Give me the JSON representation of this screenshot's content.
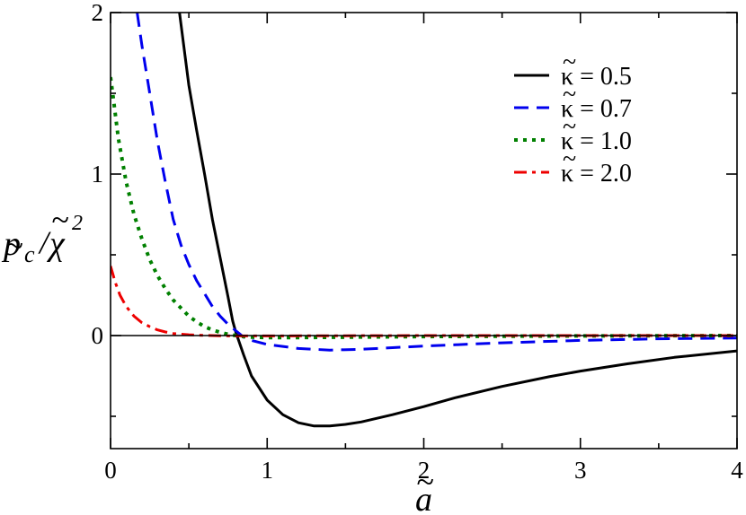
{
  "chart_data": {
    "type": "line",
    "xlim": [
      0,
      4
    ],
    "ylim": [
      -0.7,
      2
    ],
    "x_ticks": [
      "0",
      "1",
      "2",
      "3",
      "4"
    ],
    "y_ticks": [
      "0",
      "1",
      "2"
    ],
    "y_ticks_values": [
      0,
      1,
      2
    ],
    "x_ticks_values": [
      0,
      1,
      2,
      3,
      4
    ],
    "zero_line": true,
    "grid": false,
    "legend_position": "top-right",
    "xlabel": {
      "symbol": "a",
      "accent": "~"
    },
    "ylabel": {
      "numerator": "p",
      "subscript": "c",
      "denominator": "χ",
      "exponent": "2",
      "accent": "~"
    },
    "series": [
      {
        "name": "κ = 0.5",
        "legend_symbol": "κ",
        "legend_value": "= 0.5",
        "color": "#000000",
        "dash": "solid",
        "points": [
          [
            0.44,
            2.0
          ],
          [
            0.5,
            1.55
          ],
          [
            0.55,
            1.27
          ],
          [
            0.6,
            1.0
          ],
          [
            0.65,
            0.72
          ],
          [
            0.7,
            0.48
          ],
          [
            0.75,
            0.24
          ],
          [
            0.78,
            0.09
          ],
          [
            0.8,
            0.02
          ],
          [
            0.85,
            -0.12
          ],
          [
            0.9,
            -0.25
          ],
          [
            1.0,
            -0.4
          ],
          [
            1.1,
            -0.49
          ],
          [
            1.2,
            -0.54
          ],
          [
            1.3,
            -0.56
          ],
          [
            1.4,
            -0.56
          ],
          [
            1.5,
            -0.55
          ],
          [
            1.6,
            -0.535
          ],
          [
            1.8,
            -0.49
          ],
          [
            2.0,
            -0.44
          ],
          [
            2.2,
            -0.385
          ],
          [
            2.5,
            -0.315
          ],
          [
            2.8,
            -0.255
          ],
          [
            3.0,
            -0.22
          ],
          [
            3.3,
            -0.175
          ],
          [
            3.6,
            -0.135
          ],
          [
            4.0,
            -0.095
          ]
        ]
      },
      {
        "name": "κ = 0.7",
        "legend_symbol": "κ",
        "legend_value": "= 0.7",
        "color": "#0000ee",
        "dash": "long-dash",
        "points": [
          [
            0.17,
            2.0
          ],
          [
            0.2,
            1.8
          ],
          [
            0.25,
            1.5
          ],
          [
            0.3,
            1.2
          ],
          [
            0.35,
            0.95
          ],
          [
            0.4,
            0.72
          ],
          [
            0.45,
            0.56
          ],
          [
            0.5,
            0.44
          ],
          [
            0.55,
            0.34
          ],
          [
            0.6,
            0.26
          ],
          [
            0.65,
            0.18
          ],
          [
            0.7,
            0.12
          ],
          [
            0.75,
            0.07
          ],
          [
            0.8,
            0.03
          ],
          [
            0.85,
            -0.01
          ],
          [
            0.9,
            -0.03
          ],
          [
            1.0,
            -0.055
          ],
          [
            1.2,
            -0.08
          ],
          [
            1.4,
            -0.09
          ],
          [
            1.6,
            -0.085
          ],
          [
            1.8,
            -0.075
          ],
          [
            2.0,
            -0.065
          ],
          [
            2.5,
            -0.045
          ],
          [
            3.0,
            -0.03
          ],
          [
            3.5,
            -0.02
          ],
          [
            4.0,
            -0.015
          ]
        ]
      },
      {
        "name": "κ = 1.0",
        "legend_symbol": "κ",
        "legend_value": "= 1.0",
        "color": "#008000",
        "dash": "dotted",
        "points": [
          [
            0.0,
            1.6
          ],
          [
            0.02,
            1.45
          ],
          [
            0.05,
            1.22
          ],
          [
            0.1,
            0.95
          ],
          [
            0.15,
            0.75
          ],
          [
            0.2,
            0.6
          ],
          [
            0.25,
            0.47
          ],
          [
            0.3,
            0.37
          ],
          [
            0.35,
            0.29
          ],
          [
            0.4,
            0.22
          ],
          [
            0.45,
            0.17
          ],
          [
            0.5,
            0.12
          ],
          [
            0.55,
            0.085
          ],
          [
            0.6,
            0.055
          ],
          [
            0.65,
            0.035
          ],
          [
            0.7,
            0.02
          ],
          [
            0.75,
            0.008
          ],
          [
            0.8,
            0.0
          ],
          [
            0.85,
            -0.006
          ],
          [
            0.9,
            -0.01
          ],
          [
            1.0,
            -0.012
          ],
          [
            1.2,
            -0.012
          ],
          [
            1.5,
            -0.01
          ],
          [
            2.0,
            -0.006
          ],
          [
            3.0,
            -0.002
          ],
          [
            4.0,
            0.0
          ]
        ]
      },
      {
        "name": "κ = 2.0",
        "legend_symbol": "κ",
        "legend_value": "= 2.0",
        "color": "#ee0000",
        "dash": "dash-dot",
        "points": [
          [
            0.0,
            0.43
          ],
          [
            0.03,
            0.33
          ],
          [
            0.06,
            0.25
          ],
          [
            0.1,
            0.18
          ],
          [
            0.15,
            0.12
          ],
          [
            0.2,
            0.08
          ],
          [
            0.25,
            0.055
          ],
          [
            0.3,
            0.035
          ],
          [
            0.35,
            0.022
          ],
          [
            0.4,
            0.013
          ],
          [
            0.5,
            0.005
          ],
          [
            0.6,
            0.001
          ],
          [
            0.7,
            -0.001
          ],
          [
            0.8,
            -0.002
          ],
          [
            1.0,
            -0.002
          ],
          [
            1.5,
            -0.001
          ],
          [
            2.0,
            0.0
          ],
          [
            3.0,
            0.0
          ],
          [
            4.0,
            0.0
          ]
        ]
      }
    ]
  }
}
